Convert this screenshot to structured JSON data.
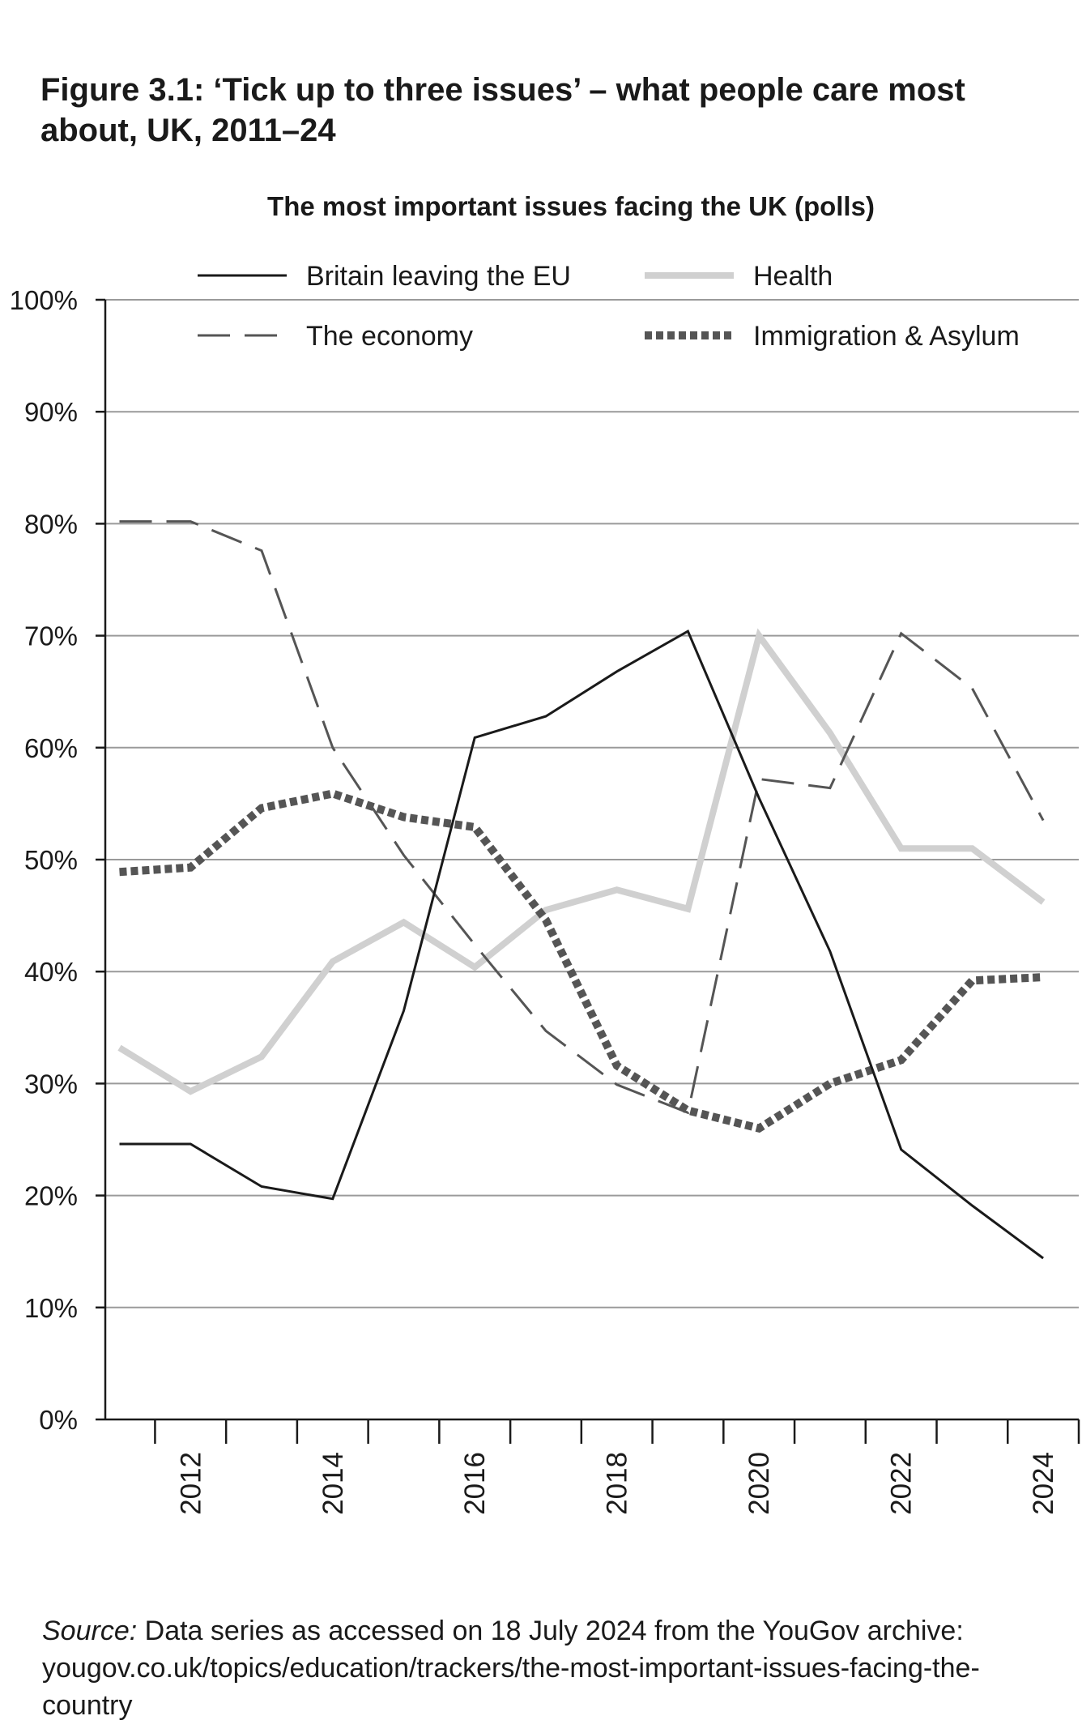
{
  "figure": {
    "title": "Figure 3.1: ‘Tick up to three issues’ – what people care most about, UK, 2011–24"
  },
  "source": {
    "label": "Source:",
    "text": " Data series as accessed on 18 July 2024 from the YouGov archive: yougov.co.uk/topics/education/trackers/the-most-important-issues-facing-the-country"
  },
  "chart_data": {
    "type": "line",
    "title": "The most important issues facing the UK (polls)",
    "xlabel": "",
    "ylabel": "",
    "x": [
      2011,
      2012,
      2013,
      2014,
      2015,
      2016,
      2017,
      2018,
      2019,
      2020,
      2021,
      2022,
      2023,
      2024
    ],
    "x_tick_labels": [
      "2012",
      "2014",
      "2016",
      "2018",
      "2020",
      "2022",
      "2024"
    ],
    "x_tick_values": [
      2012,
      2014,
      2016,
      2018,
      2020,
      2022,
      2024
    ],
    "y_tick_labels": [
      "0%",
      "10%",
      "20%",
      "30%",
      "40%",
      "50%",
      "60%",
      "70%",
      "80%",
      "90%",
      "100%"
    ],
    "ylim": [
      0,
      100
    ],
    "xlim": [
      2010.8,
      2024.5
    ],
    "grid": "horizontal",
    "legend_position": "top",
    "series": [
      {
        "name": "Britain leaving the EU",
        "style": "solid",
        "color": "#1a1a1a",
        "values": [
          24.6,
          24.6,
          20.8,
          19.7,
          36.5,
          60.9,
          62.8,
          66.8,
          70.4,
          55.5,
          41.8,
          24.1,
          19.1,
          14.4
        ]
      },
      {
        "name": "Health",
        "style": "thick",
        "color": "#d0d0d0",
        "values": [
          33.2,
          29.3,
          32.4,
          40.9,
          44.4,
          40.4,
          45.5,
          47.3,
          45.6,
          70.0,
          61.3,
          51.0,
          51.0,
          46.2
        ]
      },
      {
        "name": "The economy",
        "style": "dashed",
        "color": "#555555",
        "values": [
          80.2,
          80.2,
          77.6,
          60.0,
          50.4,
          42.4,
          34.7,
          29.9,
          27.4,
          57.2,
          56.4,
          70.2,
          65.3,
          53.5
        ]
      },
      {
        "name": "Immigration & Asylum",
        "style": "dotted",
        "color": "#555555",
        "values": [
          48.9,
          49.3,
          54.6,
          55.9,
          53.8,
          52.9,
          44.6,
          31.6,
          27.6,
          26.0,
          30.0,
          32.1,
          39.2,
          39.5
        ]
      }
    ]
  }
}
